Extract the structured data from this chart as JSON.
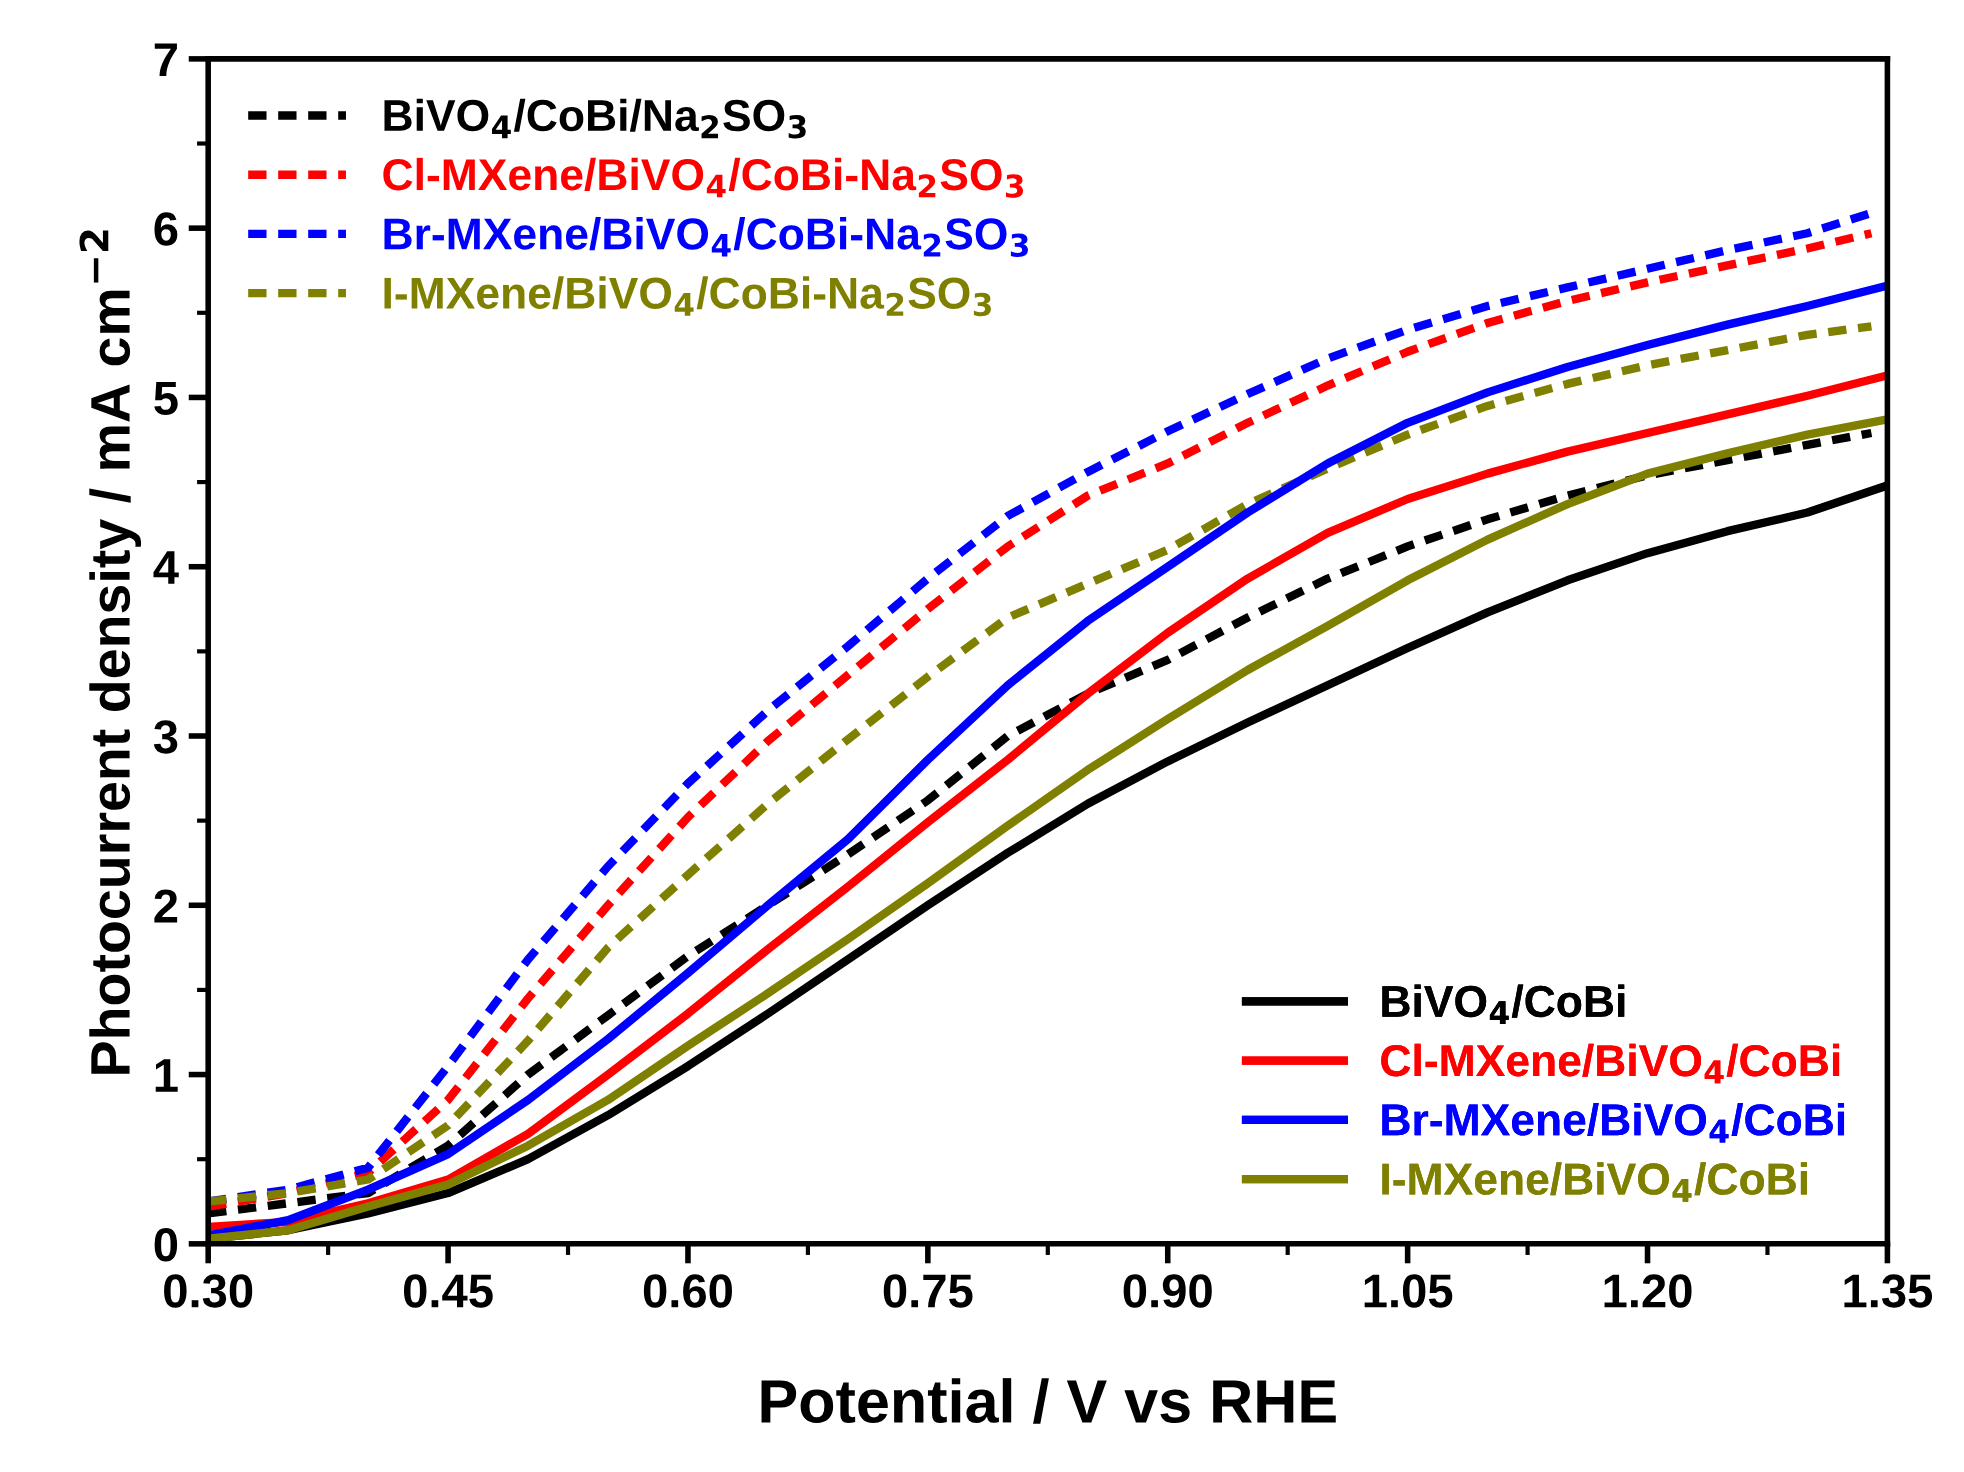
{
  "chart_data": {
    "type": "line",
    "xlabel": "Potential / V vs RHE",
    "ylabel": "Photocurrent density / mA cm$^{−2}$",
    "xlim": [
      0.3,
      1.35
    ],
    "ylim": [
      0,
      7
    ],
    "xticks": [
      {
        "value": 0.3,
        "label": "0.30"
      },
      {
        "value": 0.45,
        "label": "0.45"
      },
      {
        "value": 0.6,
        "label": "0.60"
      },
      {
        "value": 0.75,
        "label": "0.75"
      },
      {
        "value": 0.9,
        "label": "0.90"
      },
      {
        "value": 1.05,
        "label": "1.05"
      },
      {
        "value": 1.2,
        "label": "1.20"
      },
      {
        "value": 1.35,
        "label": "1.35"
      }
    ],
    "yticks": [
      0,
      1,
      2,
      3,
      4,
      5,
      6,
      7
    ],
    "grid": false,
    "legend": [
      "top left",
      "bottom right"
    ],
    "marker": "none",
    "series": [
      {
        "name": "BiVO$_{4}$/CoBi/Na$_{2}$SO$_{3}$",
        "color": "#000000",
        "line_style": "dashed",
        "x": [
          0.3,
          0.35,
          0.4,
          0.45,
          0.5,
          0.55,
          0.6,
          0.65,
          0.7,
          0.75,
          0.8,
          0.85,
          0.9,
          0.95,
          1.0,
          1.05,
          1.1,
          1.15,
          1.2,
          1.25,
          1.3,
          1.34
        ],
        "values": [
          0.18,
          0.24,
          0.3,
          0.58,
          1.0,
          1.35,
          1.7,
          2.0,
          2.3,
          2.62,
          3.0,
          3.25,
          3.45,
          3.7,
          3.93,
          4.12,
          4.28,
          4.42,
          4.54,
          4.63,
          4.72,
          4.79
        ]
      },
      {
        "name": "Cl-MXene/BiVO$_{4}$/CoBi-Na$_{2}$SO$_{3}$",
        "color": "#ff0000",
        "line_style": "dashed",
        "x": [
          0.3,
          0.35,
          0.4,
          0.45,
          0.5,
          0.55,
          0.6,
          0.65,
          0.7,
          0.75,
          0.8,
          0.85,
          0.9,
          0.95,
          1.0,
          1.05,
          1.1,
          1.15,
          1.2,
          1.25,
          1.3,
          1.34
        ],
        "values": [
          0.22,
          0.3,
          0.42,
          0.85,
          1.45,
          2.0,
          2.52,
          2.97,
          3.36,
          3.75,
          4.12,
          4.42,
          4.61,
          4.85,
          5.07,
          5.27,
          5.44,
          5.57,
          5.68,
          5.78,
          5.88,
          5.97
        ]
      },
      {
        "name": "Br-MXene/BiVO$_{4}$/CoBi-Na$_{2}$SO$_{3}$",
        "color": "#0000ff",
        "line_style": "dashed",
        "x": [
          0.3,
          0.35,
          0.4,
          0.45,
          0.5,
          0.55,
          0.6,
          0.65,
          0.7,
          0.75,
          0.8,
          0.85,
          0.9,
          0.95,
          1.0,
          1.05,
          1.1,
          1.15,
          1.2,
          1.25,
          1.3,
          1.34
        ],
        "values": [
          0.25,
          0.32,
          0.45,
          1.05,
          1.68,
          2.23,
          2.72,
          3.15,
          3.53,
          3.93,
          4.3,
          4.56,
          4.8,
          5.02,
          5.23,
          5.4,
          5.54,
          5.65,
          5.76,
          5.87,
          5.97,
          6.09
        ]
      },
      {
        "name": "I-MXene/BiVO$_{4}$/CoBi-Na$_{2}$SO$_{3}$",
        "color": "#808000",
        "line_style": "dashed",
        "x": [
          0.3,
          0.35,
          0.4,
          0.45,
          0.5,
          0.55,
          0.6,
          0.65,
          0.7,
          0.75,
          0.8,
          0.85,
          0.9,
          0.95,
          1.0,
          1.05,
          1.1,
          1.15,
          1.2,
          1.25,
          1.3,
          1.34
        ],
        "values": [
          0.25,
          0.3,
          0.38,
          0.7,
          1.2,
          1.75,
          2.18,
          2.6,
          2.98,
          3.35,
          3.7,
          3.9,
          4.1,
          4.37,
          4.58,
          4.78,
          4.95,
          5.08,
          5.19,
          5.28,
          5.37,
          5.42
        ]
      },
      {
        "name": "BiVO$_{4}$/CoBi",
        "color": "#000000",
        "line_style": "solid",
        "x": [
          0.3,
          0.35,
          0.4,
          0.45,
          0.5,
          0.55,
          0.6,
          0.65,
          0.7,
          0.75,
          0.8,
          0.85,
          0.9,
          0.95,
          1.0,
          1.05,
          1.1,
          1.15,
          1.2,
          1.25,
          1.3,
          1.35
        ],
        "values": [
          0.03,
          0.08,
          0.18,
          0.3,
          0.5,
          0.76,
          1.05,
          1.36,
          1.68,
          2.0,
          2.31,
          2.6,
          2.85,
          3.08,
          3.3,
          3.52,
          3.73,
          3.92,
          4.08,
          4.21,
          4.32,
          4.48
        ]
      },
      {
        "name": "Cl-MXene/BiVO$_{4}$/CoBi",
        "color": "#ff0000",
        "line_style": "solid",
        "x": [
          0.3,
          0.35,
          0.4,
          0.45,
          0.5,
          0.55,
          0.6,
          0.65,
          0.7,
          0.75,
          0.8,
          0.85,
          0.9,
          0.95,
          1.0,
          1.05,
          1.1,
          1.15,
          1.2,
          1.25,
          1.3,
          1.35
        ],
        "values": [
          0.1,
          0.13,
          0.24,
          0.38,
          0.65,
          1.0,
          1.36,
          1.74,
          2.11,
          2.49,
          2.86,
          3.25,
          3.61,
          3.93,
          4.2,
          4.4,
          4.55,
          4.68,
          4.79,
          4.9,
          5.01,
          5.13
        ]
      },
      {
        "name": "Br-MXene/BiVO$_{4}$/CoBi",
        "color": "#0000ff",
        "line_style": "solid",
        "x": [
          0.3,
          0.35,
          0.4,
          0.45,
          0.5,
          0.55,
          0.6,
          0.65,
          0.7,
          0.75,
          0.8,
          0.85,
          0.9,
          0.95,
          1.0,
          1.05,
          1.1,
          1.15,
          1.2,
          1.25,
          1.3,
          1.35
        ],
        "values": [
          0.05,
          0.14,
          0.32,
          0.53,
          0.85,
          1.21,
          1.6,
          2.0,
          2.39,
          2.86,
          3.3,
          3.68,
          4.0,
          4.32,
          4.61,
          4.85,
          5.03,
          5.18,
          5.31,
          5.43,
          5.54,
          5.66
        ]
      },
      {
        "name": "I-MXene/BiVO$_{4}$/CoBi",
        "color": "#808000",
        "line_style": "solid",
        "x": [
          0.3,
          0.35,
          0.4,
          0.45,
          0.5,
          0.55,
          0.6,
          0.65,
          0.7,
          0.75,
          0.8,
          0.85,
          0.9,
          0.95,
          1.0,
          1.05,
          1.1,
          1.15,
          1.2,
          1.25,
          1.3,
          1.35
        ],
        "values": [
          0.03,
          0.08,
          0.22,
          0.35,
          0.58,
          0.85,
          1.17,
          1.48,
          1.8,
          2.13,
          2.47,
          2.8,
          3.1,
          3.39,
          3.65,
          3.92,
          4.16,
          4.37,
          4.55,
          4.67,
          4.78,
          4.87
        ]
      }
    ]
  }
}
